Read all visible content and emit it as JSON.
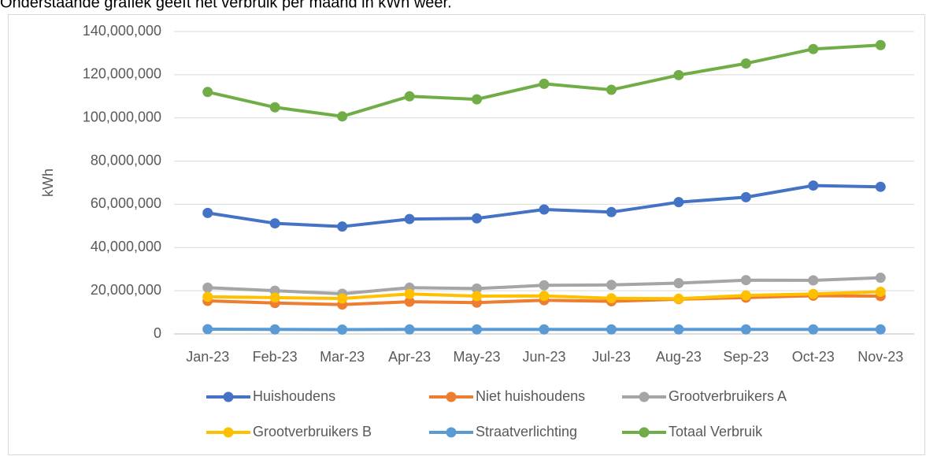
{
  "chart_data": {
    "type": "line",
    "title": "Onderstaande grafiek geeft het verbruik per maand in kWh weer.",
    "y_label": "kWh",
    "categories": [
      "Jan-23",
      "Feb-23",
      "Mar-23",
      "Apr-23",
      "May-23",
      "Jun-23",
      "Jul-23",
      "Aug-23",
      "Sep-23",
      "Oct-23",
      "Nov-23"
    ],
    "series": [
      {
        "name": "Huishoudens",
        "color": "#4472c4",
        "values": [
          56000000,
          51200000,
          49700000,
          53200000,
          53500000,
          57600000,
          56400000,
          61000000,
          63300000,
          68700000,
          68100000
        ]
      },
      {
        "name": "Niet huishoudens",
        "color": "#ed7d31",
        "values": [
          15300000,
          14300000,
          13600000,
          14900000,
          14500000,
          15600000,
          15100000,
          16100000,
          16800000,
          17700000,
          17500000
        ]
      },
      {
        "name": "Grootverbruikers A",
        "color": "#a5a5a5",
        "values": [
          21400000,
          20000000,
          18600000,
          21400000,
          21000000,
          22500000,
          22700000,
          23500000,
          24900000,
          24800000,
          26000000
        ]
      },
      {
        "name": "Grootverbruikers B",
        "color": "#ffc000",
        "values": [
          17200000,
          16800000,
          16400000,
          18500000,
          17500000,
          17600000,
          16500000,
          16300000,
          17800000,
          18500000,
          19500000
        ]
      },
      {
        "name": "Straatverlichting",
        "color": "#5b9bd5",
        "values": [
          2200000,
          2100000,
          2000000,
          2100000,
          2100000,
          2100000,
          2100000,
          2100000,
          2100000,
          2100000,
          2100000
        ]
      },
      {
        "name": "Totaal Verbruik",
        "color": "#70ad47",
        "values": [
          112000000,
          104900000,
          100700000,
          110000000,
          108600000,
          115800000,
          113000000,
          119800000,
          125200000,
          131900000,
          133700000
        ]
      }
    ],
    "ylim": [
      0,
      140000000
    ],
    "yticks": [
      0,
      {
        "value": 20000000,
        "label": "20,000,000"
      },
      {
        "value": 40000000,
        "label": "40,000,000"
      },
      {
        "value": 60000000,
        "label": "60,000,000"
      },
      {
        "value": 80000000,
        "label": "80,000,000"
      },
      {
        "value": 100000000,
        "label": "100,000,000"
      },
      {
        "value": 120000000,
        "label": "120,000,000"
      },
      {
        "value": 140000000,
        "label": "140,000,000"
      }
    ],
    "grid": true,
    "legend": "bottom"
  }
}
